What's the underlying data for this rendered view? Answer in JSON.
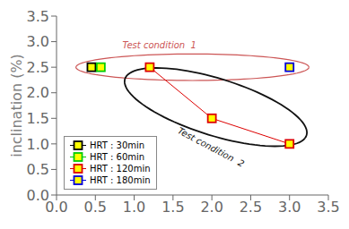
{
  "chart_data": {
    "type": "scatter",
    "ylabel": "inclination (%)",
    "xlim": [
      0.0,
      3.5
    ],
    "ylim": [
      0.0,
      3.5
    ],
    "xticks": [
      {
        "value": 0.0,
        "label": "0.0"
      },
      0.5,
      {
        "value": 1.0,
        "label": "1.0"
      },
      1.5,
      {
        "value": 2.0,
        "label": "2.0"
      },
      2.5,
      {
        "value": 3.0,
        "label": "3.0"
      },
      3.5
    ],
    "yticks": [
      {
        "value": 0.0,
        "label": "0.0"
      },
      0.5,
      {
        "value": 1.0,
        "label": "1.0"
      },
      1.5,
      {
        "value": 2.0,
        "label": "2.0"
      },
      2.5,
      {
        "value": 3.0,
        "label": "3.0"
      },
      3.5
    ],
    "legend": "lower left",
    "marker": "square",
    "color": "#ffff00",
    "series": [
      {
        "name": "HRT : 30min",
        "color": "#000000",
        "x": [
          0.45
        ],
        "values": [
          2.5
        ]
      },
      {
        "name": "HRT : 60min",
        "color": "#00cc00",
        "x": [
          0.57
        ],
        "values": [
          2.5
        ]
      },
      {
        "name": "HRT : 120min",
        "color": "#dd0000",
        "x": [
          1.2,
          2.0,
          3.0
        ],
        "values": [
          2.5,
          1.5,
          1.0
        ],
        "line_style": "solid"
      },
      {
        "name": "HRT : 180min",
        "color": "#0000dd",
        "x": [
          3.0
        ],
        "values": [
          2.5
        ]
      }
    ],
    "annotations": [
      {
        "text": "Test condition  1",
        "x": 0.85,
        "y": 2.87,
        "color": "#cc5555",
        "ellipse": {
          "cx": 1.75,
          "cy": 2.5,
          "width": 3.0,
          "height": 0.52,
          "angle": 0
        }
      },
      {
        "text": "Test condition  2",
        "x": 1.55,
        "y": 1.22,
        "color": "#111111",
        "ellipse": {
          "cx": 2.05,
          "cy": 1.72,
          "width": 2.6,
          "height": 1.05,
          "angle": -28
        }
      }
    ]
  }
}
